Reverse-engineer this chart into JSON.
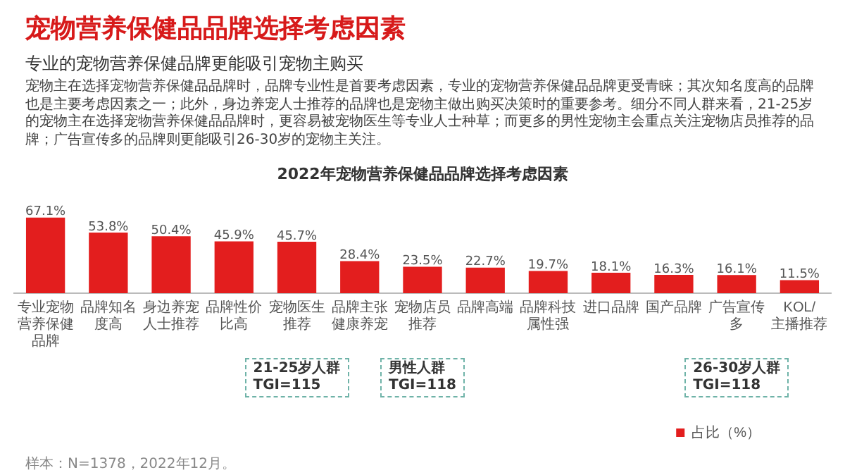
{
  "chart_data": {
    "type": "bar",
    "title": "宠物营养保健品品牌选择考虑因素",
    "subtitle": "专业的宠物营养保健品牌更能吸引宠物主购买",
    "categories": [
      "专业宠物营养保健品牌",
      "品牌知名度高",
      "身边养宠人士推荐",
      "品牌性价比高",
      "宠物医生推荐",
      "品牌主张健康养宠",
      "宠物店员推荐",
      "品牌高端",
      "品牌科技属性强",
      "进口品牌",
      "国产品牌",
      "广告宣传多",
      "KOL/主播推荐"
    ],
    "series": [
      {
        "name": "占比（%）",
        "color": "#e31e1e",
        "values": [
          67.1,
          53.8,
          50.4,
          45.9,
          45.7,
          28.4,
          23.5,
          22.7,
          19.7,
          18.1,
          16.3,
          16.1,
          11.5
        ],
        "value_labels": [
          "67.1%",
          "53.8%",
          "50.4%",
          "45.9%",
          "45.7%",
          "28.4%",
          "23.5%",
          "22.7%",
          "19.7%",
          "18.1%",
          "16.3%",
          "16.1%",
          "11.5%"
        ]
      }
    ],
    "data_labels": true,
    "legend": "bottom right",
    "grid": false,
    "annotations": [
      "宠物主在选择宠物营养保健品品牌时，品牌专业性是首要考虑因素，专业的宠物营养保健品品牌更受青睐；其次知名度高的品牌也是主要考虑因素之一；此外，身边养宠人士推荐的品牌也是宠物主做出购买决策时的重要参考。细分不同人群来看，21-25岁的宠物主在选择宠物营养保健品品牌时，更容易被宠物医生等专业人士种草；而更多的男性宠物主会重点关注宠物店员推荐的品牌；广告宣传多的品牌则更能吸引26-30岁的宠物主关注。",
      "2022年宠物营养保健品品牌选择考虑因素",
      "21-25岁人群\nTGI=115",
      "男性人群\nTGI=118",
      "26-30岁人群\nTGI=118",
      "样本：N=1378，2022年12月。"
    ]
  }
}
